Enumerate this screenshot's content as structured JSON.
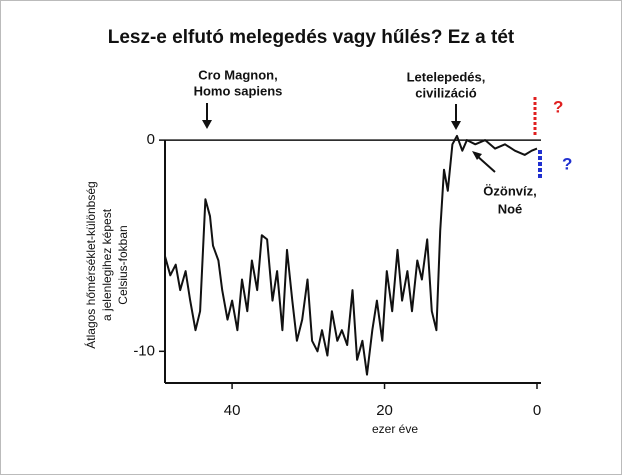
{
  "chart_data": {
    "type": "line",
    "title": "Lesz-e elfutó melegedés vagy hűlés? Ez a tét",
    "xlabel": "ezer éve",
    "ylabel": [
      "Átlagos hőmérséklet-különbség",
      "a jelenlegihez képest",
      "Celsius-fokban"
    ],
    "annotations": [
      "Cro Magnon,",
      "Homo sapiens",
      "Letelepedés,",
      "civilizáció",
      "Özönvíz,",
      "Noé",
      "?",
      "?"
    ],
    "x": [
      48.8,
      48.1,
      47.4,
      46.8,
      46.1,
      45.5,
      44.8,
      44.2,
      43.5,
      42.9,
      42.5,
      41.8,
      41.3,
      40.6,
      40.0,
      39.3,
      38.7,
      38.0,
      37.4,
      36.7,
      36.1,
      35.4,
      34.7,
      34.1,
      33.4,
      32.8,
      32.1,
      31.5,
      30.8,
      30.1,
      29.5,
      28.8,
      28.2,
      27.5,
      26.9,
      26.2,
      25.6,
      24.9,
      24.2,
      23.6,
      22.9,
      22.3,
      21.6,
      21.0,
      20.3,
      19.7,
      19.0,
      18.3,
      17.7,
      17.0,
      16.4,
      15.7,
      15.1,
      14.4,
      13.8,
      13.2,
      12.7,
      12.2,
      11.7,
      11.1,
      10.5,
      9.8,
      9.2,
      8.1,
      6.8,
      5.5,
      4.2,
      2.9,
      1.6,
      0.7,
      0
    ],
    "series": [
      {
        "color": "#111111",
        "values": [
          -5.5,
          -6.4,
          -5.9,
          -7.1,
          -6.2,
          -7.6,
          -9.0,
          -8.1,
          -2.8,
          -3.6,
          -5.0,
          -5.7,
          -7.1,
          -8.5,
          -7.6,
          -9.0,
          -6.6,
          -8.1,
          -5.7,
          -7.1,
          -4.5,
          -4.7,
          -7.6,
          -6.2,
          -9.0,
          -5.2,
          -7.6,
          -9.5,
          -8.5,
          -6.6,
          -9.5,
          -10.0,
          -9.0,
          -10.2,
          -8.1,
          -9.5,
          -9.0,
          -9.7,
          -7.1,
          -10.4,
          -9.5,
          -11.1,
          -9.0,
          -7.6,
          -9.5,
          -6.2,
          -8.1,
          -5.2,
          -7.6,
          -6.2,
          -8.1,
          -5.7,
          -6.6,
          -4.7,
          -8.1,
          -9.0,
          -4.3,
          -1.4,
          -2.4,
          -0.2,
          0.2,
          -0.5,
          0,
          -0.2,
          0,
          -0.4,
          -0.2,
          -0.5,
          -0.7,
          -0.5,
          -0.4
        ]
      }
    ],
    "xlim": [
      48.8,
      0
    ],
    "xticks": [
      40,
      20,
      0
    ],
    "ylim": [
      -11.5,
      1
    ],
    "yticks": [
      0,
      -10
    ]
  }
}
